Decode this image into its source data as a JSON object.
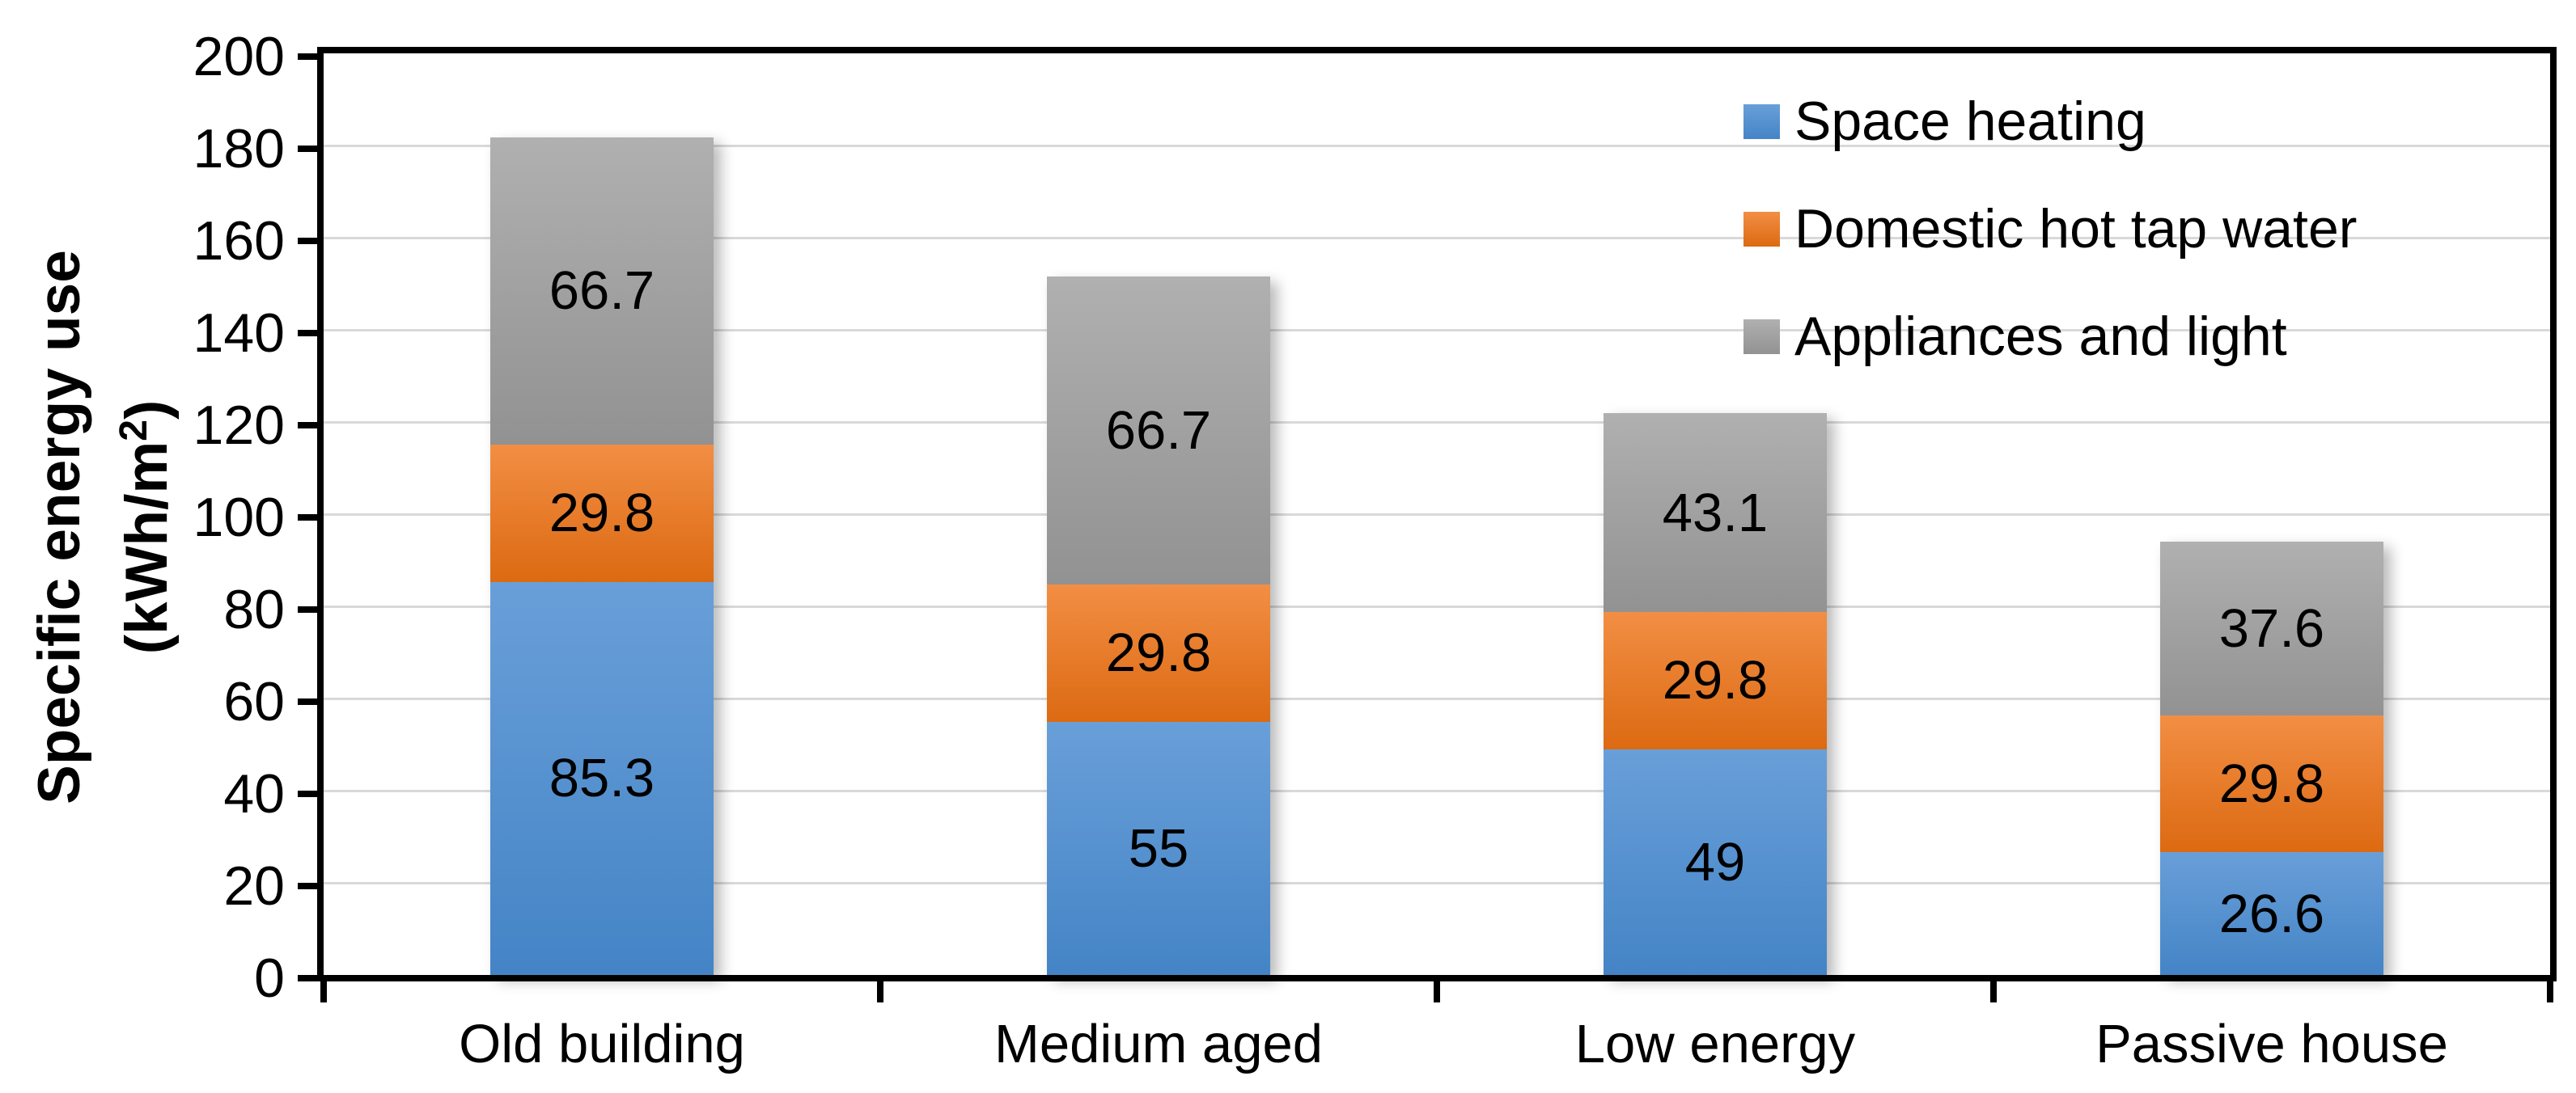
{
  "chart_data": {
    "type": "bar",
    "stacked": true,
    "categories": [
      "Old building",
      "Medium aged",
      "Low energy",
      "Passive house"
    ],
    "series": [
      {
        "name": "Space heating",
        "key": "space-heating",
        "color": "#5B9BD5",
        "gradient_top": "#699FD9",
        "gradient_bottom": "#4484C6",
        "values": [
          85.3,
          55,
          49,
          26.6
        ],
        "labels": [
          "85.3",
          "55",
          "49",
          "26.6"
        ]
      },
      {
        "name": "Domestic hot tap water",
        "key": "domestic-hot-tap-water",
        "color": "#ED7D31",
        "gradient_top": "#F28E44",
        "gradient_bottom": "#DC6A12",
        "values": [
          29.8,
          29.8,
          29.8,
          29.8
        ],
        "labels": [
          "29.8",
          "29.8",
          "29.8",
          "29.8"
        ]
      },
      {
        "name": "Appliances and light",
        "key": "appliances-and-light",
        "color": "#A5A5A5",
        "gradient_top": "#B0B0B0",
        "gradient_bottom": "#929292",
        "values": [
          66.7,
          66.7,
          43.1,
          37.6
        ],
        "labels": [
          "66.7",
          "66.7",
          "43.1",
          "37.6"
        ]
      }
    ],
    "y_axis": {
      "title_line1": "Specific energy use",
      "title_line2_prefix": "(kWh/m",
      "title_line2_sup": "2",
      "title_line2_suffix": ")",
      "min": 0,
      "max": 200,
      "step": 20,
      "tick_labels": [
        "0",
        "20",
        "40",
        "60",
        "80",
        "100",
        "120",
        "140",
        "160",
        "180",
        "200"
      ]
    },
    "legend": {
      "position": "top-right-inside",
      "entries": [
        "Space heating",
        "Domestic hot tap water",
        "Appliances and light"
      ]
    },
    "grid": true,
    "gridline_color": "#d9d9d9",
    "frame_color": "#000000",
    "background_color": "#ffffff",
    "label_color": "#000000"
  }
}
